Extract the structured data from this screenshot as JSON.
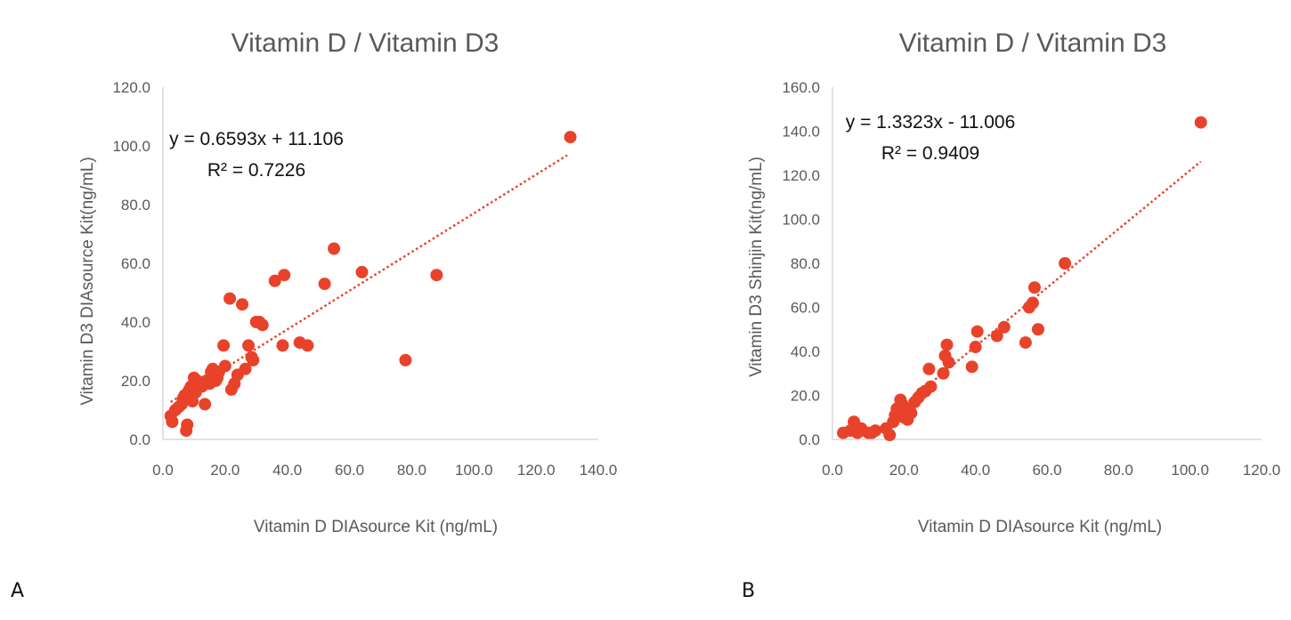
{
  "colors": {
    "point": "#e8432a",
    "trend": "#e8432a",
    "axis": "#d9d9d9",
    "text": "#595959"
  },
  "chart_data": [
    {
      "panel_label": "A",
      "type": "scatter",
      "title": "Vitamin D / Vitamin D3",
      "xlabel": "Vitamin D  DIAsource Kit (ng/mL)",
      "ylabel": "Vitamin D3 DIAsource Kit(ng/mL)",
      "xlim": [
        0,
        140
      ],
      "ylim": [
        0,
        120
      ],
      "xticks": [
        "0.0",
        "20.0",
        "40.0",
        "60.0",
        "80.0",
        "100.0",
        "120.0",
        "140.0"
      ],
      "yticks": [
        "0.0",
        "20.0",
        "40.0",
        "60.0",
        "80.0",
        "100.0",
        "120.0"
      ],
      "grid": false,
      "equation": "y = 0.6593x + 11.106",
      "r2": "R² = 0.7226",
      "trendline": {
        "slope": 0.6593,
        "intercept": 11.106,
        "x_range": [
          2.5,
          130
        ]
      },
      "points": [
        [
          2.5,
          8
        ],
        [
          3,
          6
        ],
        [
          4,
          10
        ],
        [
          5,
          11
        ],
        [
          6,
          12
        ],
        [
          6.5,
          14
        ],
        [
          7,
          15
        ],
        [
          7.5,
          3
        ],
        [
          7.8,
          5
        ],
        [
          8,
          16
        ],
        [
          8.5,
          17
        ],
        [
          9,
          18
        ],
        [
          9.5,
          13
        ],
        [
          10,
          21
        ],
        [
          10.5,
          16
        ],
        [
          11,
          20
        ],
        [
          12,
          19
        ],
        [
          12.5,
          18
        ],
        [
          13.5,
          12
        ],
        [
          14,
          20
        ],
        [
          15,
          19
        ],
        [
          15.5,
          23
        ],
        [
          16,
          24
        ],
        [
          17,
          20
        ],
        [
          17.5,
          21
        ],
        [
          18,
          23
        ],
        [
          19.5,
          32
        ],
        [
          20,
          25
        ],
        [
          21.5,
          48
        ],
        [
          22,
          17
        ],
        [
          23,
          19
        ],
        [
          24,
          22
        ],
        [
          25.5,
          46
        ],
        [
          26.5,
          24
        ],
        [
          27.5,
          32
        ],
        [
          28.5,
          28
        ],
        [
          29,
          27
        ],
        [
          30,
          40
        ],
        [
          31,
          40
        ],
        [
          32,
          39
        ],
        [
          36,
          54
        ],
        [
          38.5,
          32
        ],
        [
          39,
          56
        ],
        [
          44,
          33
        ],
        [
          46.5,
          32
        ],
        [
          52,
          53
        ],
        [
          55,
          65
        ],
        [
          64,
          57
        ],
        [
          78,
          27
        ],
        [
          88,
          56
        ],
        [
          131,
          103
        ]
      ]
    },
    {
      "panel_label": "B",
      "type": "scatter",
      "title": "Vitamin D / Vitamin D3",
      "xlabel": "Vitamin D  DIAsource Kit (ng/mL)",
      "ylabel": "Vitamin D3 Shinjin  Kit(ng/mL)",
      "xlim": [
        0,
        120
      ],
      "ylim": [
        0,
        160
      ],
      "xticks": [
        "0.0",
        "20.0",
        "40.0",
        "60.0",
        "80.0",
        "100.0",
        "120.0"
      ],
      "yticks": [
        "0.0",
        "20.0",
        "40.0",
        "60.0",
        "80.0",
        "100.0",
        "120.0",
        "140.0",
        "160.0"
      ],
      "grid": false,
      "equation": "y = 1.3323x - 11.006",
      "r2": "R² = 0.9409",
      "trendline": {
        "slope": 1.3323,
        "intercept": -11.006,
        "x_range": [
          16,
          103
        ]
      },
      "points": [
        [
          3,
          3
        ],
        [
          5,
          4
        ],
        [
          6,
          8
        ],
        [
          6.5,
          6
        ],
        [
          7,
          3
        ],
        [
          8,
          5
        ],
        [
          10,
          3
        ],
        [
          11,
          3
        ],
        [
          12,
          4
        ],
        [
          15,
          5
        ],
        [
          16,
          2
        ],
        [
          17,
          8
        ],
        [
          17.5,
          11
        ],
        [
          18,
          14
        ],
        [
          18.5,
          12
        ],
        [
          19,
          18
        ],
        [
          19.5,
          16
        ],
        [
          20,
          10
        ],
        [
          20.5,
          13
        ],
        [
          21,
          9
        ],
        [
          21.5,
          14
        ],
        [
          22,
          12
        ],
        [
          23,
          17
        ],
        [
          24,
          19
        ],
        [
          25,
          21
        ],
        [
          26,
          22
        ],
        [
          27,
          32
        ],
        [
          27.5,
          24
        ],
        [
          31,
          30
        ],
        [
          31.5,
          38
        ],
        [
          32,
          43
        ],
        [
          32.5,
          35
        ],
        [
          39,
          33
        ],
        [
          40,
          42
        ],
        [
          40.5,
          49
        ],
        [
          46,
          47
        ],
        [
          48,
          51
        ],
        [
          54,
          44
        ],
        [
          55,
          60
        ],
        [
          56,
          62
        ],
        [
          56.5,
          69
        ],
        [
          57.5,
          50
        ],
        [
          65,
          80
        ],
        [
          103,
          144
        ]
      ]
    }
  ]
}
